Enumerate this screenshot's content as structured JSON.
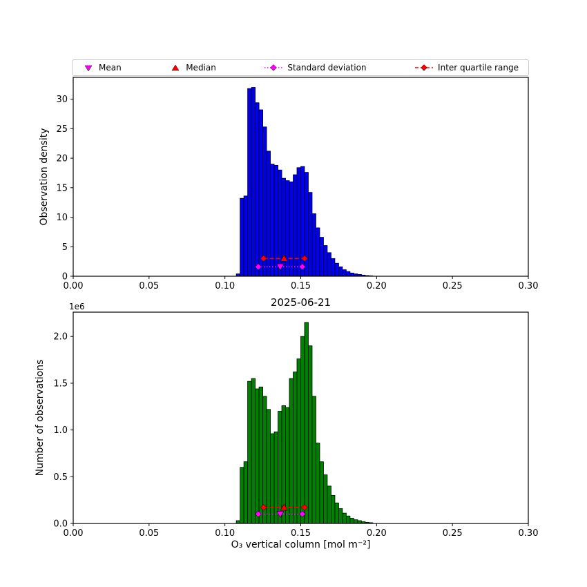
{
  "figure": {
    "title": "2025-06-21",
    "legend": {
      "items": [
        {
          "label": "Mean",
          "marker": "triangle-down",
          "color": "#ff00ff"
        },
        {
          "label": "Median",
          "marker": "triangle-up",
          "color": "#ff0000"
        },
        {
          "label": "Standard deviation",
          "marker": "diamond-dotted-line",
          "color": "#ff00ff"
        },
        {
          "label": "Inter quartile range",
          "marker": "diamond-dashed-line",
          "color": "#ff0000"
        }
      ]
    }
  },
  "chart_data": [
    {
      "type": "bar",
      "subtype": "histogram",
      "ylabel": "Observation density",
      "bar_color": "#0000ee",
      "edge_color": "#000000",
      "xlim": [
        0.0,
        0.3
      ],
      "ylim": [
        0.0,
        33.7
      ],
      "bin_start": 0.1075,
      "bin_width": 0.0025,
      "values": [
        0.4,
        13.2,
        13.6,
        31.8,
        32.0,
        29.4,
        28.2,
        25.3,
        21.2,
        19.0,
        18.8,
        18.0,
        16.6,
        16.2,
        16.0,
        17.2,
        18.4,
        18.6,
        17.6,
        14.2,
        10.6,
        8.2,
        6.6,
        5.2,
        4.0,
        3.0,
        2.2,
        1.6,
        1.1,
        0.8,
        0.55,
        0.4,
        0.3,
        0.2,
        0.12,
        0.08
      ],
      "xticks": [
        {
          "v": 0.0,
          "label": "0.00"
        },
        {
          "v": 0.05,
          "label": "0.05"
        },
        {
          "v": 0.1,
          "label": "0.10"
        },
        {
          "v": 0.15,
          "label": "0.15"
        },
        {
          "v": 0.2,
          "label": "0.20"
        },
        {
          "v": 0.25,
          "label": "0.25"
        },
        {
          "v": 0.3,
          "label": "0.30"
        }
      ],
      "yticks": [
        {
          "v": 0,
          "label": "0"
        },
        {
          "v": 5,
          "label": "5"
        },
        {
          "v": 10,
          "label": "10"
        },
        {
          "v": 15,
          "label": "15"
        },
        {
          "v": 20,
          "label": "20"
        },
        {
          "v": 25,
          "label": "25"
        },
        {
          "v": 30,
          "label": "30"
        }
      ],
      "stats": {
        "mean": 0.1365,
        "median": 0.139,
        "std_low": 0.122,
        "std_high": 0.151,
        "q1": 0.1255,
        "q3": 0.1525,
        "iqr_line_y": 3.0,
        "std_line_y": 1.6,
        "mean_color": "#ff00ff",
        "median_color": "#ff0000"
      }
    },
    {
      "type": "bar",
      "subtype": "histogram",
      "title": "2025-06-21",
      "ylabel": "Number of observations",
      "xlabel": "O₃ vertical column [mol m⁻²]",
      "offset_text": "1e6",
      "bar_color": "#008000",
      "edge_color": "#000000",
      "xlim": [
        0.0,
        0.3
      ],
      "ylim": [
        0.0,
        2.26
      ],
      "bin_start": 0.1075,
      "bin_width": 0.0025,
      "values_unit": "1e6",
      "values": [
        0.03,
        0.6,
        0.66,
        1.52,
        1.55,
        1.44,
        1.46,
        1.36,
        1.22,
        0.96,
        0.98,
        1.2,
        1.26,
        1.24,
        1.55,
        1.62,
        1.76,
        2.0,
        2.15,
        1.9,
        1.36,
        0.86,
        0.66,
        0.52,
        0.4,
        0.3,
        0.22,
        0.16,
        0.11,
        0.08,
        0.055,
        0.04,
        0.03,
        0.02,
        0.012,
        0.008
      ],
      "xticks": [
        {
          "v": 0.0,
          "label": "0.00"
        },
        {
          "v": 0.05,
          "label": "0.05"
        },
        {
          "v": 0.1,
          "label": "0.10"
        },
        {
          "v": 0.15,
          "label": "0.15"
        },
        {
          "v": 0.2,
          "label": "0.20"
        },
        {
          "v": 0.25,
          "label": "0.25"
        },
        {
          "v": 0.3,
          "label": "0.30"
        }
      ],
      "yticks": [
        {
          "v": 0.0,
          "label": "0.0"
        },
        {
          "v": 0.5,
          "label": "0.5"
        },
        {
          "v": 1.0,
          "label": "1.0"
        },
        {
          "v": 1.5,
          "label": "1.5"
        },
        {
          "v": 2.0,
          "label": "2.0"
        }
      ],
      "stats": {
        "mean": 0.1365,
        "median": 0.139,
        "std_low": 0.122,
        "std_high": 0.151,
        "q1": 0.1255,
        "q3": 0.1525,
        "iqr_line_y": 0.17,
        "std_line_y": 0.1,
        "mean_color": "#ff00ff",
        "median_color": "#ff0000"
      }
    }
  ]
}
